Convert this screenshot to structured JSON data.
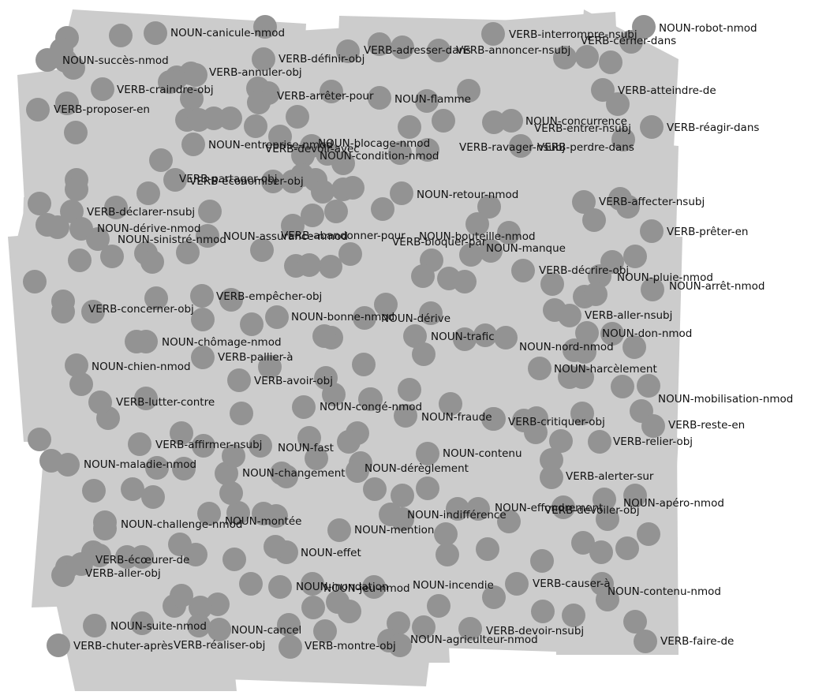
{
  "colors": {
    "background": "#ffffff",
    "tile": "#cccccc",
    "node": "#939393",
    "text": "#111111"
  },
  "labels": [
    "NOUN-canicule-nmod",
    "VERB-interrompre-nsubj",
    "NOUN-robot-nmod",
    "VERB-adresser-dans",
    "VERB-annoncer-nsubj",
    "VERB-définir-obj",
    "VERB-cerner-dans",
    "NOUN-succès-nmod",
    "VERB-annuler-obj",
    "VERB-craindre-obj",
    "VERB-arrêter-pour",
    "NOUN-flamme",
    "VERB-atteindre-de",
    "VERB-proposer-en",
    "NOUN-concurrence",
    "VERB-entrer-nsubj",
    "VERB-réagir-dans",
    "NOUN-entreprise-nmod",
    "NOUN-blocage-nmod",
    "VERB-devoir-avec",
    "VERB-ravager-nsubj",
    "VERB-perdre-dans",
    "NOUN-condition-nmod",
    "VERB-partager-obj",
    "VERB-économiser-obj",
    "NOUN-retour-nmod",
    "VERB-affecter-nsubj",
    "VERB-déclarer-nsubj",
    "VERB-prêter-en",
    "NOUN-dérive-nmod",
    "NOUN-assurance-nmod",
    "VERB-abandonner-pour",
    "NOUN-bouteille-nmod",
    "NOUN-sinistré-nmod",
    "VERB-bloquer-par",
    "NOUN-manque",
    "VERB-décrire-obj",
    "NOUN-pluie-nmod",
    "NOUN-arrêt-nmod",
    "VERB-empêcher-obj",
    "VERB-concerner-obj",
    "VERB-aller-nsubj",
    "NOUN-bonne-nmod",
    "NOUN-dérive",
    "NOUN-don-nmod",
    "NOUN-trafic",
    "NOUN-chômage-nmod",
    "NOUN-nord-nmod",
    "VERB-pallier-à",
    "NOUN-chien-nmod",
    "NOUN-harcèlement",
    "VERB-avoir-obj",
    "NOUN-mobilisation-nmod",
    "VERB-lutter-contre",
    "NOUN-congé-nmod",
    "NOUN-fraude",
    "VERB-critiquer-obj",
    "VERB-reste-en",
    "VERB-affirmer-nsubj",
    "NOUN-fast",
    "VERB-relier-obj",
    "NOUN-contenu",
    "NOUN-maladie-nmod",
    "NOUN-dérèglement",
    "NOUN-changement",
    "VERB-alerter-sur",
    "NOUN-apéro-nmod",
    "NOUN-effondrement",
    "VERB-dévoiler-obj",
    "NOUN-indifférence",
    "NOUN-challenge-nmod",
    "NOUN-montée",
    "NOUN-mention",
    "VERB-écœurer-de",
    "NOUN-effet",
    "VERB-aller-obj",
    "NOUN-inondation",
    "NOUN-jeu-nmod",
    "NOUN-incendie",
    "VERB-causer-à",
    "NOUN-contenu-nmod",
    "NOUN-suite-nmod",
    "NOUN-cancel",
    "VERB-devoir-nsubj",
    "NOUN-agriculteur-nmod",
    "VERB-chuter-après",
    "VERB-réaliser-obj",
    "VERB-montre-obj",
    "VERB-faire-de"
  ]
}
